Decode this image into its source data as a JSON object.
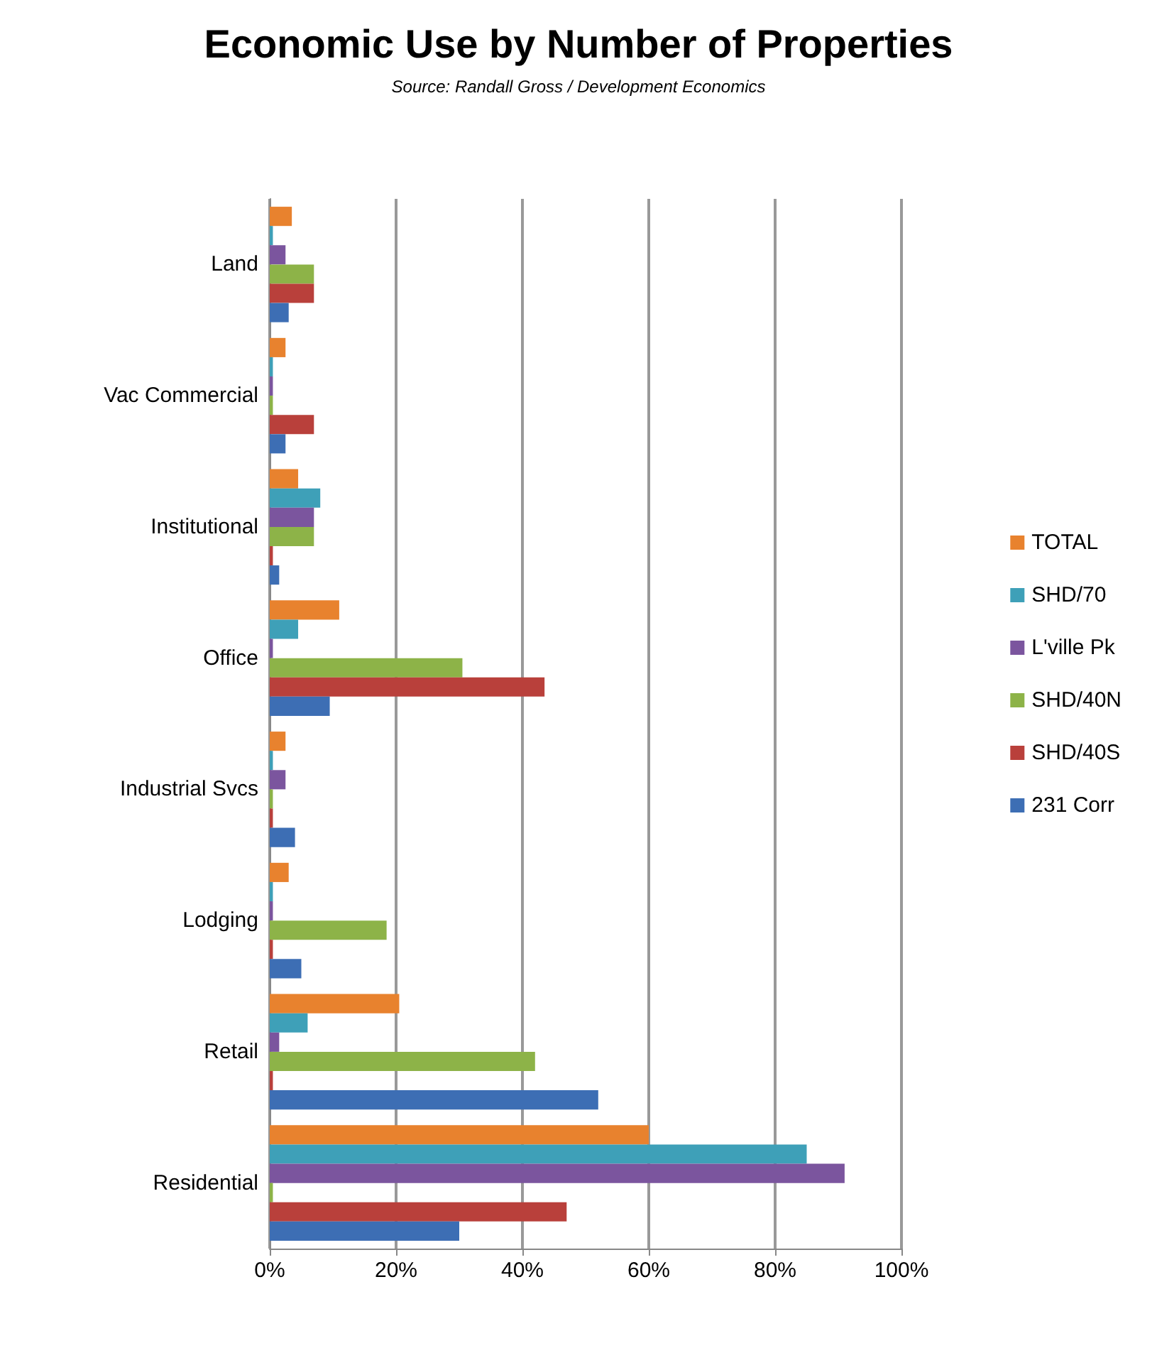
{
  "chart_data": {
    "type": "bar",
    "orientation": "horizontal",
    "title": "Economic Use by Number of Properties",
    "subtitle": "Source: Randall Gross / Development Economics",
    "categories": [
      "Land",
      "Vac Commercial",
      "Institutional",
      "Office",
      "Industrial Svcs",
      "Lodging",
      "Retail",
      "Residential"
    ],
    "series": [
      {
        "name": "TOTAL",
        "color": "#e8822e",
        "values": [
          3.5,
          2.5,
          4.5,
          11,
          2.5,
          3,
          20.5,
          60
        ]
      },
      {
        "name": "SHD/70",
        "color": "#3ea0b8",
        "values": [
          0.5,
          0.5,
          8,
          4.5,
          0.5,
          0.5,
          6,
          85
        ]
      },
      {
        "name": "L'ville Pk",
        "color": "#7b559e",
        "values": [
          2.5,
          0.5,
          7,
          0.5,
          2.5,
          0.5,
          1.5,
          91
        ]
      },
      {
        "name": "SHD/40N",
        "color": "#8db348",
        "values": [
          7,
          0.5,
          7,
          30.5,
          0.5,
          18.5,
          42,
          0.5
        ]
      },
      {
        "name": "SHD/40S",
        "color": "#b9403b",
        "values": [
          7,
          7,
          0.5,
          43.5,
          0.5,
          0.5,
          0.5,
          47
        ]
      },
      {
        "name": "231 Corr",
        "color": "#3d6eb4",
        "values": [
          3,
          2.5,
          1.5,
          9.5,
          4,
          5,
          52,
          30
        ]
      }
    ],
    "xlim": [
      0,
      100
    ],
    "xticks": [
      {
        "value": 0,
        "label": "0%"
      },
      {
        "value": 20,
        "label": "20%"
      },
      {
        "value": 40,
        "label": "40%"
      },
      {
        "value": 60,
        "label": "60%"
      },
      {
        "value": 80,
        "label": "80%"
      },
      {
        "value": 100,
        "label": "100%"
      }
    ],
    "grid": "x",
    "legend": "right"
  }
}
